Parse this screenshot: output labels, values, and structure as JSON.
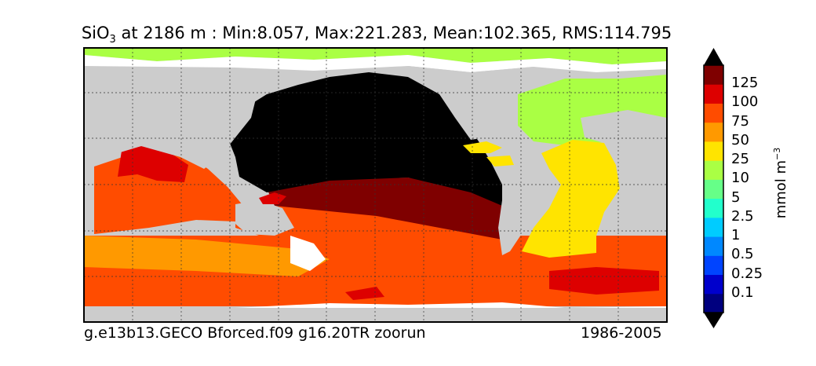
{
  "title": {
    "species": "SiO",
    "subscript": "3",
    "rest": " at 2186 m : Min:8.057, Max:221.283, Mean:102.365, RMS:114.795"
  },
  "caption_left": "g.e13b13.GECO Bforced.f09 g16.20TR zoorun",
  "caption_right": "1986-2005",
  "colorbar": {
    "unit_base": "mmol m",
    "unit_exp": "−3",
    "ticks": [
      "125",
      "100",
      "75",
      "50",
      "25",
      "10",
      "5",
      "2.5",
      "1",
      "0.5",
      "0.25",
      "0.1"
    ],
    "colors": [
      "#00007f",
      "#0000cc",
      "#0044ff",
      "#0088ff",
      "#00ccff",
      "#22ffcc",
      "#66ff88",
      "#aaff44",
      "#ffe400",
      "#ff9900",
      "#ff4c00",
      "#dd0000",
      "#7f0000"
    ]
  },
  "colors": {
    "land": "#cccccc",
    "pacific_high": "#000000",
    "ocean_white": "#ffffff"
  }
}
